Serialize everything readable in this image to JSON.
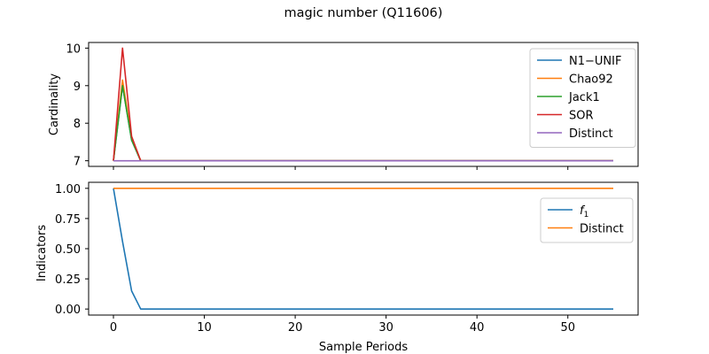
{
  "figure": {
    "title": "magic number (Q11606)"
  },
  "chart_data": [
    {
      "type": "line",
      "ylabel": "Cardinality",
      "xlabel": "",
      "xlim": [
        0,
        55
      ],
      "ylim": [
        6.85,
        10.15
      ],
      "yticks": [
        7,
        8,
        9,
        10
      ],
      "ytick_labels": [
        "7",
        "8",
        "9",
        "10"
      ],
      "xticks": [
        0,
        10,
        20,
        30,
        40,
        50
      ],
      "xtick_labels_shown": false,
      "grid": false,
      "legend_position": "top-right",
      "series": [
        {
          "name": "N1−UNIF",
          "color": "#1f77b4",
          "points": [
            [
              0,
              7
            ],
            [
              1,
              9.0
            ],
            [
              2,
              7.55
            ],
            [
              3,
              7
            ],
            [
              55,
              7
            ]
          ]
        },
        {
          "name": "Chao92",
          "color": "#ff7f0e",
          "points": [
            [
              0,
              7
            ],
            [
              1,
              9.15
            ],
            [
              2,
              7.6
            ],
            [
              3,
              7
            ],
            [
              55,
              7
            ]
          ]
        },
        {
          "name": "Jack1",
          "color": "#2ca02c",
          "points": [
            [
              0,
              7
            ],
            [
              1,
              9.0
            ],
            [
              2,
              7.55
            ],
            [
              3,
              7
            ],
            [
              55,
              7
            ]
          ]
        },
        {
          "name": "SOR",
          "color": "#d62728",
          "points": [
            [
              0,
              7
            ],
            [
              1,
              10.0
            ],
            [
              2,
              7.65
            ],
            [
              3,
              7
            ],
            [
              55,
              7
            ]
          ]
        },
        {
          "name": "Distinct",
          "color": "#9467bd",
          "points": [
            [
              0,
              7
            ],
            [
              55,
              7
            ]
          ]
        }
      ]
    },
    {
      "type": "line",
      "ylabel": "Indicators",
      "xlabel": "Sample Periods",
      "xlim": [
        0,
        55
      ],
      "ylim": [
        -0.05,
        1.05
      ],
      "yticks": [
        0,
        0.25,
        0.5,
        0.75,
        1.0
      ],
      "ytick_labels": [
        "0.00",
        "0.25",
        "0.50",
        "0.75",
        "1.00"
      ],
      "xticks": [
        0,
        10,
        20,
        30,
        40,
        50
      ],
      "xtick_labels": [
        "0",
        "10",
        "20",
        "30",
        "40",
        "50"
      ],
      "grid": false,
      "legend_position": "top-right",
      "series": [
        {
          "name": "f",
          "name_subscript": "1",
          "color": "#1f77b4",
          "points": [
            [
              0,
              1.0
            ],
            [
              1,
              0.56
            ],
            [
              2,
              0.15
            ],
            [
              3,
              0.0
            ],
            [
              55,
              0.0
            ]
          ]
        },
        {
          "name": "Distinct",
          "color": "#ff7f0e",
          "points": [
            [
              0,
              1.0
            ],
            [
              55,
              1.0
            ]
          ]
        }
      ]
    }
  ]
}
